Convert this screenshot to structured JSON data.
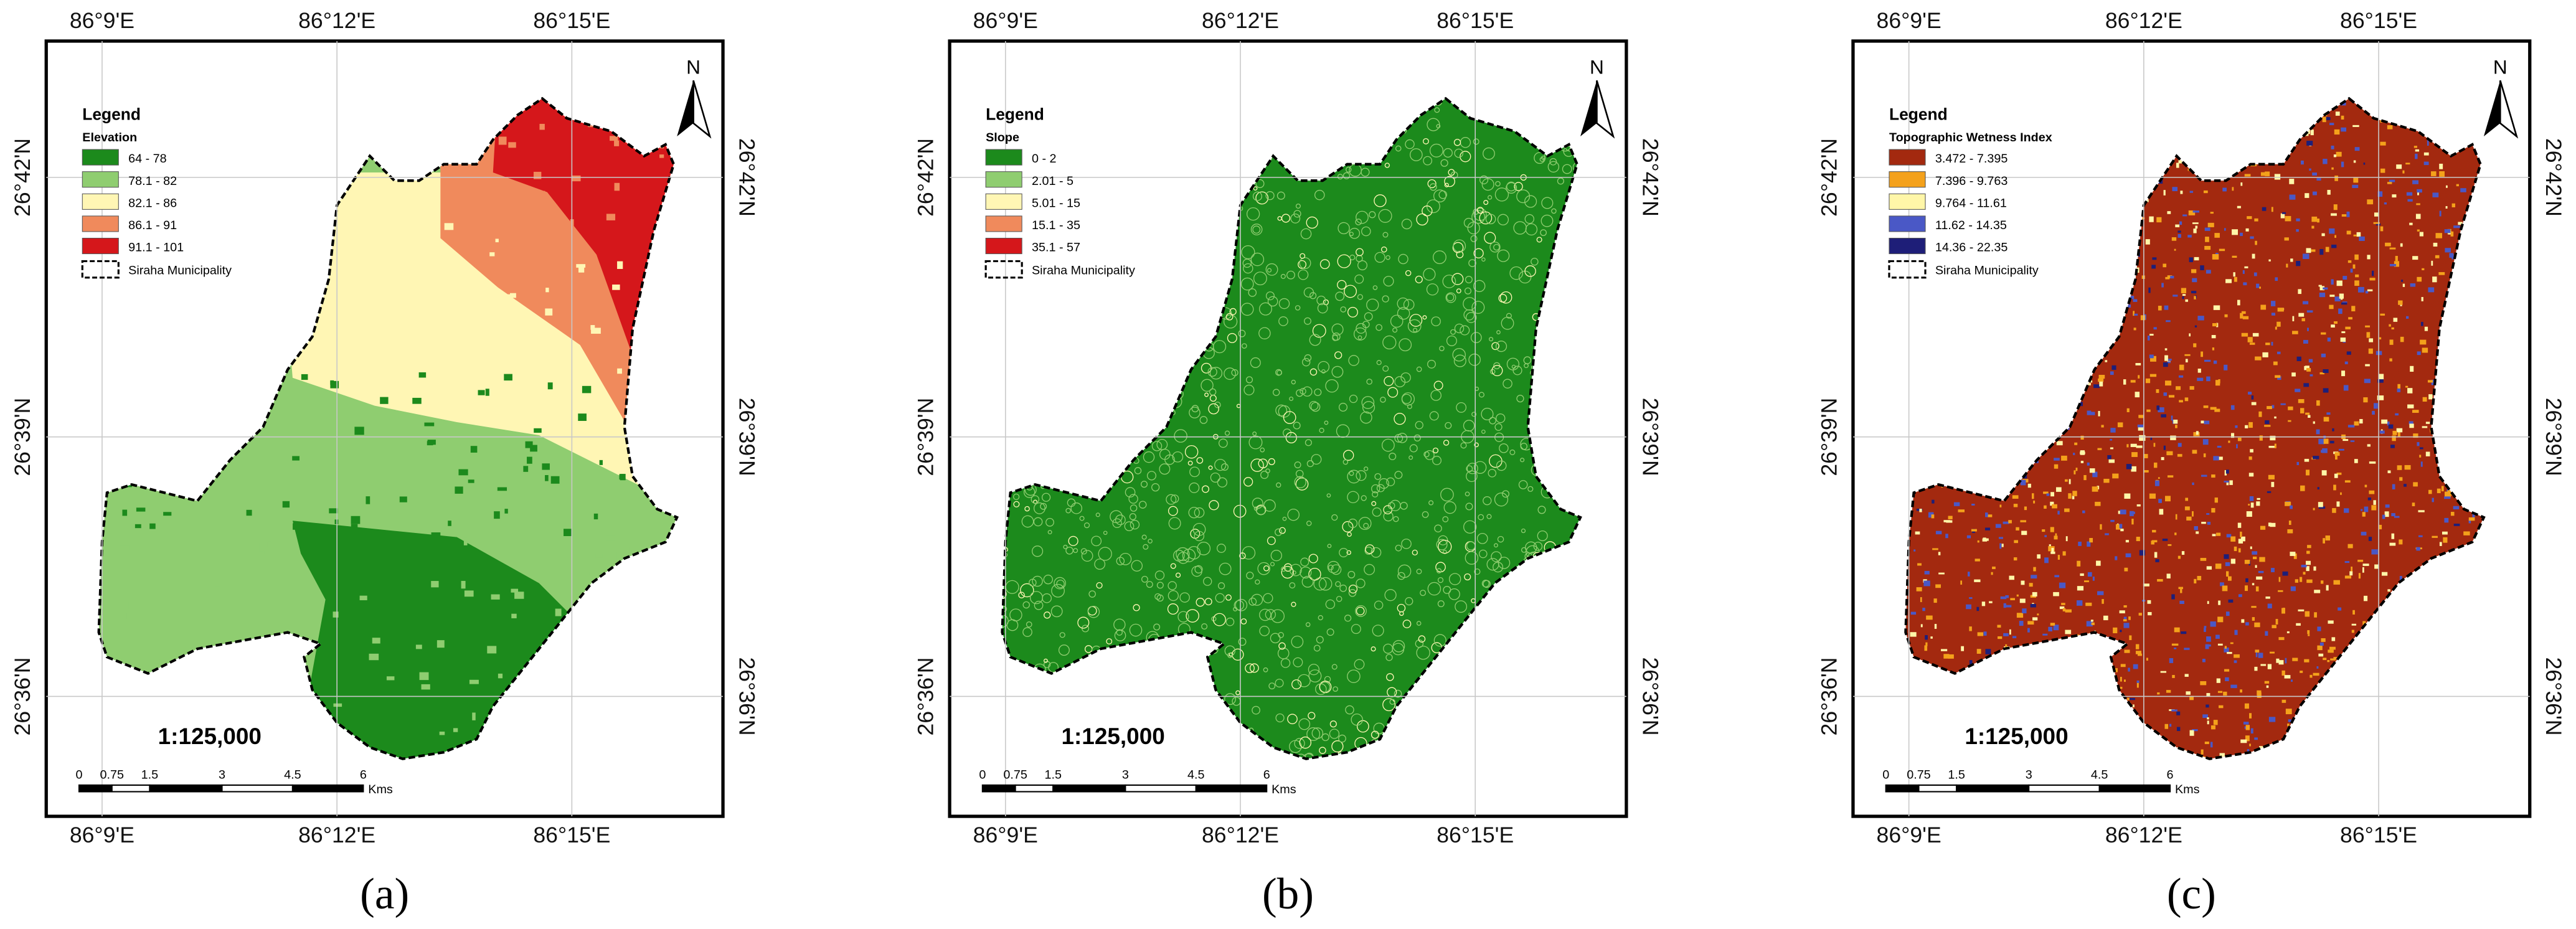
{
  "panels": [
    {
      "caption": "(a)",
      "legend": {
        "title": "Legend",
        "layer": "Elevation",
        "items": [
          {
            "label": "64 - 78",
            "color": "#1c8a1c"
          },
          {
            "label": "78.1 - 82",
            "color": "#8fcd70"
          },
          {
            "label": "82.1 - 86",
            "color": "#fff6b4"
          },
          {
            "label": "86.1 - 91",
            "color": "#f08a5c"
          },
          {
            "label": "91.1 - 101",
            "color": "#d5171b"
          }
        ],
        "boundary": "Siraha Municipality"
      },
      "scale": "1:125,000",
      "scalebar": {
        "ticks": [
          "0",
          "0.75",
          "1.5",
          "3",
          "4.5",
          "6"
        ],
        "unit": "Kms"
      },
      "north": "N",
      "lon_labels": [
        "86°9'E",
        "86°12'E",
        "86°15'E"
      ],
      "lat_labels": [
        "26°42'N",
        "26°39'N",
        "26°36'N"
      ]
    },
    {
      "caption": "(b)",
      "legend": {
        "title": "Legend",
        "layer": "Slope",
        "items": [
          {
            "label": "0 - 2",
            "color": "#1c8a1c"
          },
          {
            "label": "2.01 - 5",
            "color": "#8fcd70"
          },
          {
            "label": "5.01 - 15",
            "color": "#fff6b4"
          },
          {
            "label": "15.1 - 35",
            "color": "#f08a5c"
          },
          {
            "label": "35.1 - 57",
            "color": "#d5171b"
          }
        ],
        "boundary": "Siraha Municipality"
      },
      "scale": "1:125,000",
      "scalebar": {
        "ticks": [
          "0",
          "0.75",
          "1.5",
          "3",
          "4.5",
          "6"
        ],
        "unit": "Kms"
      },
      "north": "N",
      "lon_labels": [
        "86°9'E",
        "86°12'E",
        "86°15'E"
      ],
      "lat_labels": [
        "26°42'N",
        "26°39'N",
        "26°36'N"
      ]
    },
    {
      "caption": "(c)",
      "legend": {
        "title": "Legend",
        "layer": "Topographic Wetness Index",
        "items": [
          {
            "label": "3.472 - 7.395",
            "color": "#a3290f"
          },
          {
            "label": "7.396 - 9.763",
            "color": "#f4a11b"
          },
          {
            "label": "9.764 - 11.61",
            "color": "#fff6a8"
          },
          {
            "label": "11.62 - 14.35",
            "color": "#4a58c6"
          },
          {
            "label": "14.36 - 22.35",
            "color": "#1e1e78"
          }
        ],
        "boundary": "Siraha Municipality"
      },
      "scale": "1:125,000",
      "scalebar": {
        "ticks": [
          "0",
          "0.75",
          "1.5",
          "3",
          "4.5",
          "6"
        ],
        "unit": "Kms"
      },
      "north": "N",
      "lon_labels": [
        "86°9'E",
        "86°12'E",
        "86°15'E"
      ],
      "lat_labels": [
        "26°42'N",
        "26°39'N",
        "26°36'N"
      ]
    }
  ]
}
